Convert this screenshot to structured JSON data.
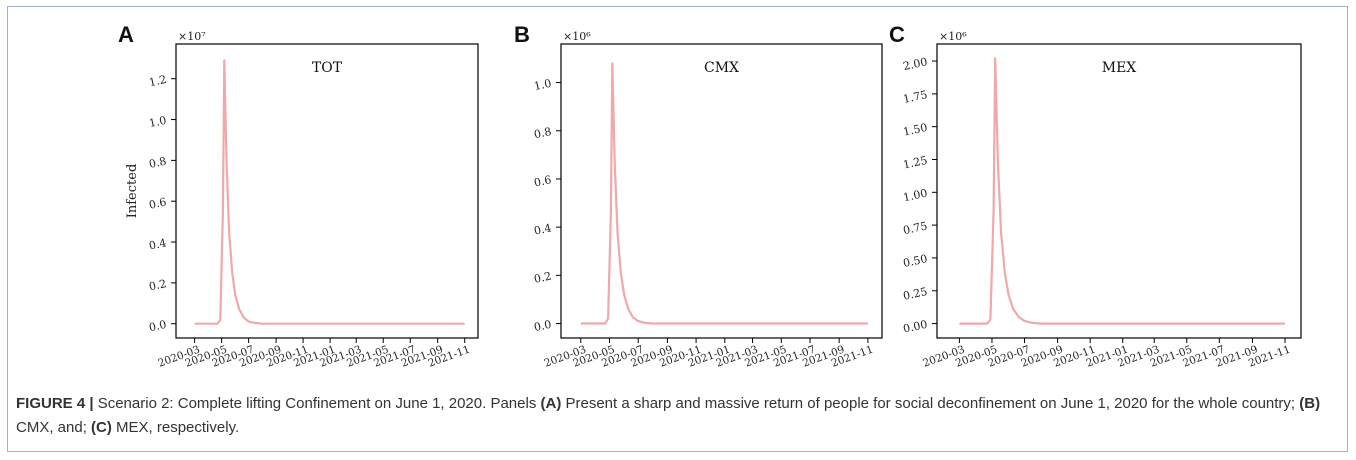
{
  "chart_data": [
    {
      "type": "line",
      "panel_label": "A",
      "title": "TOT",
      "multiplier": "×10⁷",
      "ylabel": "Infected",
      "xlabel": "",
      "x_tick_labels": [
        "2020-03",
        "2020-05",
        "2020-07",
        "2020-09",
        "2020-11",
        "2021-01",
        "2021-03",
        "2021-05",
        "2021-07",
        "2021-09",
        "2021-11"
      ],
      "y_ticks": [
        0.0,
        0.2,
        0.4,
        0.6,
        0.8,
        1.0,
        1.2
      ],
      "y_tick_labels": [
        "0.0",
        "0.2",
        "0.4",
        "0.6",
        "0.8",
        "1.0",
        "1.2"
      ],
      "ylim": [
        -0.07,
        1.37
      ],
      "line_color": "#f0a8a8",
      "series": [
        {
          "x": [
            "2020-03-01",
            "2020-04-22",
            "2020-04-28",
            "2020-05-04",
            "2020-05-07",
            "2020-05-12",
            "2020-05-18",
            "2020-05-25",
            "2020-06-01",
            "2020-06-10",
            "2020-06-20",
            "2020-07-01",
            "2020-07-15",
            "2020-08-01",
            "2021-11-01"
          ],
          "values": [
            0.0,
            0.0,
            0.02,
            0.55,
            1.29,
            0.8,
            0.45,
            0.25,
            0.14,
            0.07,
            0.03,
            0.01,
            0.004,
            0.0,
            0.0
          ]
        }
      ]
    },
    {
      "type": "line",
      "panel_label": "B",
      "title": "CMX",
      "multiplier": "×10⁶",
      "ylabel": "",
      "xlabel": "",
      "x_tick_labels": [
        "2020-03",
        "2020-05",
        "2020-07",
        "2020-09",
        "2020-11",
        "2021-01",
        "2021-03",
        "2021-05",
        "2021-07",
        "2021-09",
        "2021-11"
      ],
      "y_ticks": [
        0.0,
        0.2,
        0.4,
        0.6,
        0.8,
        1.0
      ],
      "y_tick_labels": [
        "0.0",
        "0.2",
        "0.4",
        "0.6",
        "0.8",
        "1.0"
      ],
      "ylim": [
        -0.06,
        1.16
      ],
      "line_color": "#f0a8a8",
      "series": [
        {
          "x": [
            "2020-03-01",
            "2020-04-22",
            "2020-04-28",
            "2020-05-04",
            "2020-05-07",
            "2020-05-12",
            "2020-05-18",
            "2020-05-25",
            "2020-06-01",
            "2020-06-10",
            "2020-06-20",
            "2020-07-01",
            "2020-07-15",
            "2020-08-01",
            "2021-11-01"
          ],
          "values": [
            0.0,
            0.0,
            0.02,
            0.46,
            1.08,
            0.67,
            0.38,
            0.21,
            0.12,
            0.06,
            0.025,
            0.01,
            0.003,
            0.0,
            0.0
          ]
        }
      ]
    },
    {
      "type": "line",
      "panel_label": "C",
      "title": "MEX",
      "multiplier": "×10⁶",
      "ylabel": "",
      "xlabel": "",
      "x_tick_labels": [
        "2020-03",
        "2020-05",
        "2020-07",
        "2020-09",
        "2020-11",
        "2021-01",
        "2021-03",
        "2021-05",
        "2021-07",
        "2021-09",
        "2021-11"
      ],
      "y_ticks": [
        0.0,
        0.25,
        0.5,
        0.75,
        1.0,
        1.25,
        1.5,
        1.75,
        2.0
      ],
      "y_tick_labels": [
        "0.00",
        "0.25",
        "0.50",
        "0.75",
        "1.00",
        "1.25",
        "1.50",
        "1.75",
        "2.00"
      ],
      "ylim": [
        -0.11,
        2.13
      ],
      "line_color": "#f0a8a8",
      "series": [
        {
          "x": [
            "2020-03-01",
            "2020-04-22",
            "2020-04-28",
            "2020-05-04",
            "2020-05-07",
            "2020-05-12",
            "2020-05-18",
            "2020-05-25",
            "2020-06-01",
            "2020-06-10",
            "2020-06-20",
            "2020-07-01",
            "2020-07-15",
            "2020-08-01",
            "2021-11-01"
          ],
          "values": [
            0.0,
            0.0,
            0.03,
            0.86,
            2.02,
            1.25,
            0.7,
            0.39,
            0.22,
            0.11,
            0.05,
            0.02,
            0.006,
            0.0,
            0.0
          ]
        }
      ]
    }
  ],
  "caption": {
    "figure_label": "FIGURE 4 |",
    "part1": " Scenario 2: Complete lifting Confinement on June 1, 2020. Panels ",
    "panel_a": "(A)",
    "part2": " Present a sharp and massive return of people for social deconfinement on June 1, 2020 for the whole country; ",
    "panel_b": "(B)",
    "part3": " CMX, and; ",
    "panel_c": "(C)",
    "part4": " MEX, respectively."
  }
}
